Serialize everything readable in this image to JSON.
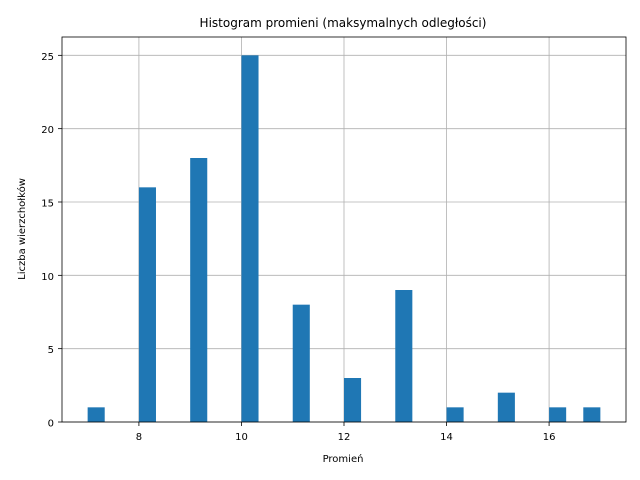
{
  "chart_data": {
    "type": "bar",
    "title": "Histogram promieni (maksymalnych odległości)",
    "xlabel": "Promień",
    "ylabel": "Liczba wierzchołków",
    "xlim": [
      6.5,
      17.5
    ],
    "ylim": [
      0,
      26.25
    ],
    "xticks": [
      8,
      10,
      12,
      14,
      16
    ],
    "yticks": [
      0,
      5,
      10,
      15,
      20,
      25
    ],
    "grid": true,
    "bar_color": "#1f77b4",
    "bins": [
      {
        "start": 7.0,
        "end": 7.333,
        "count": 1
      },
      {
        "start": 8.0,
        "end": 8.333,
        "count": 16
      },
      {
        "start": 9.0,
        "end": 9.333,
        "count": 18
      },
      {
        "start": 10.0,
        "end": 10.333,
        "count": 25
      },
      {
        "start": 11.0,
        "end": 11.333,
        "count": 8
      },
      {
        "start": 12.0,
        "end": 12.333,
        "count": 3
      },
      {
        "start": 13.0,
        "end": 13.333,
        "count": 9
      },
      {
        "start": 14.0,
        "end": 14.333,
        "count": 1
      },
      {
        "start": 15.0,
        "end": 15.333,
        "count": 2
      },
      {
        "start": 16.0,
        "end": 16.333,
        "count": 1
      },
      {
        "start": 16.667,
        "end": 17.0,
        "count": 1
      }
    ]
  }
}
